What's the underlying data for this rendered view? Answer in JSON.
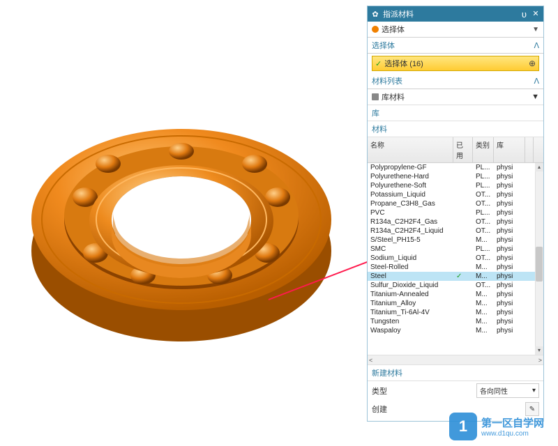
{
  "panel": {
    "title": "指派材料",
    "dropdown": "选择体",
    "sections": {
      "select_body": {
        "title": "选择体",
        "value": "选择体 (16)"
      },
      "material_list": {
        "title": "材料列表",
        "lib_label": "库材料",
        "lib_sub": "库",
        "material_sub": "材料"
      },
      "new_material": "新建材料",
      "type_label": "类型",
      "type_value": "各向同性",
      "create_label": "创建"
    },
    "columns": {
      "name": "名称",
      "used": "已用",
      "cat": "类别",
      "lib": "库"
    },
    "materials": [
      {
        "name": "Polypropylene-GF",
        "cat": "PL...",
        "lib": "physi"
      },
      {
        "name": "Polyurethene-Hard",
        "cat": "PL...",
        "lib": "physi"
      },
      {
        "name": "Polyurethene-Soft",
        "cat": "PL...",
        "lib": "physi"
      },
      {
        "name": "Potassium_Liquid",
        "cat": "OT...",
        "lib": "physi"
      },
      {
        "name": "Propane_C3H8_Gas",
        "cat": "OT...",
        "lib": "physi"
      },
      {
        "name": "PVC",
        "cat": "PL...",
        "lib": "physi"
      },
      {
        "name": "R134a_C2H2F4_Gas",
        "cat": "OT...",
        "lib": "physi"
      },
      {
        "name": "R134a_C2H2F4_Liquid",
        "cat": "OT...",
        "lib": "physi"
      },
      {
        "name": "S/Steel_PH15-5",
        "cat": "M...",
        "lib": "physi"
      },
      {
        "name": "SMC",
        "cat": "PL...",
        "lib": "physi"
      },
      {
        "name": "Sodium_Liquid",
        "cat": "OT...",
        "lib": "physi"
      },
      {
        "name": "Steel-Rolled",
        "cat": "M...",
        "lib": "physi"
      },
      {
        "name": "Steel",
        "used": true,
        "cat": "M...",
        "lib": "physi",
        "selected": true
      },
      {
        "name": "Sulfur_Dioxide_Liquid",
        "cat": "OT...",
        "lib": "physi"
      },
      {
        "name": "Titanium-Annealed",
        "cat": "M...",
        "lib": "physi"
      },
      {
        "name": "Titanium_Alloy",
        "cat": "M...",
        "lib": "physi"
      },
      {
        "name": "Titanium_Ti-6Al-4V",
        "cat": "M...",
        "lib": "physi"
      },
      {
        "name": "Tungsten",
        "cat": "M...",
        "lib": "physi"
      },
      {
        "name": "Waspaloy",
        "cat": "M...",
        "lib": "physi"
      }
    ]
  },
  "watermark": {
    "badge": "1",
    "text": "第一区自学网",
    "sub": "www.d1qu.com"
  },
  "bearing": {
    "outer_color": "#ee8b1e",
    "highlight": "#ffb860",
    "shadow": "#b85e00",
    "dark": "#8a4200"
  },
  "arrow": {
    "color": "#ff1a4d"
  }
}
